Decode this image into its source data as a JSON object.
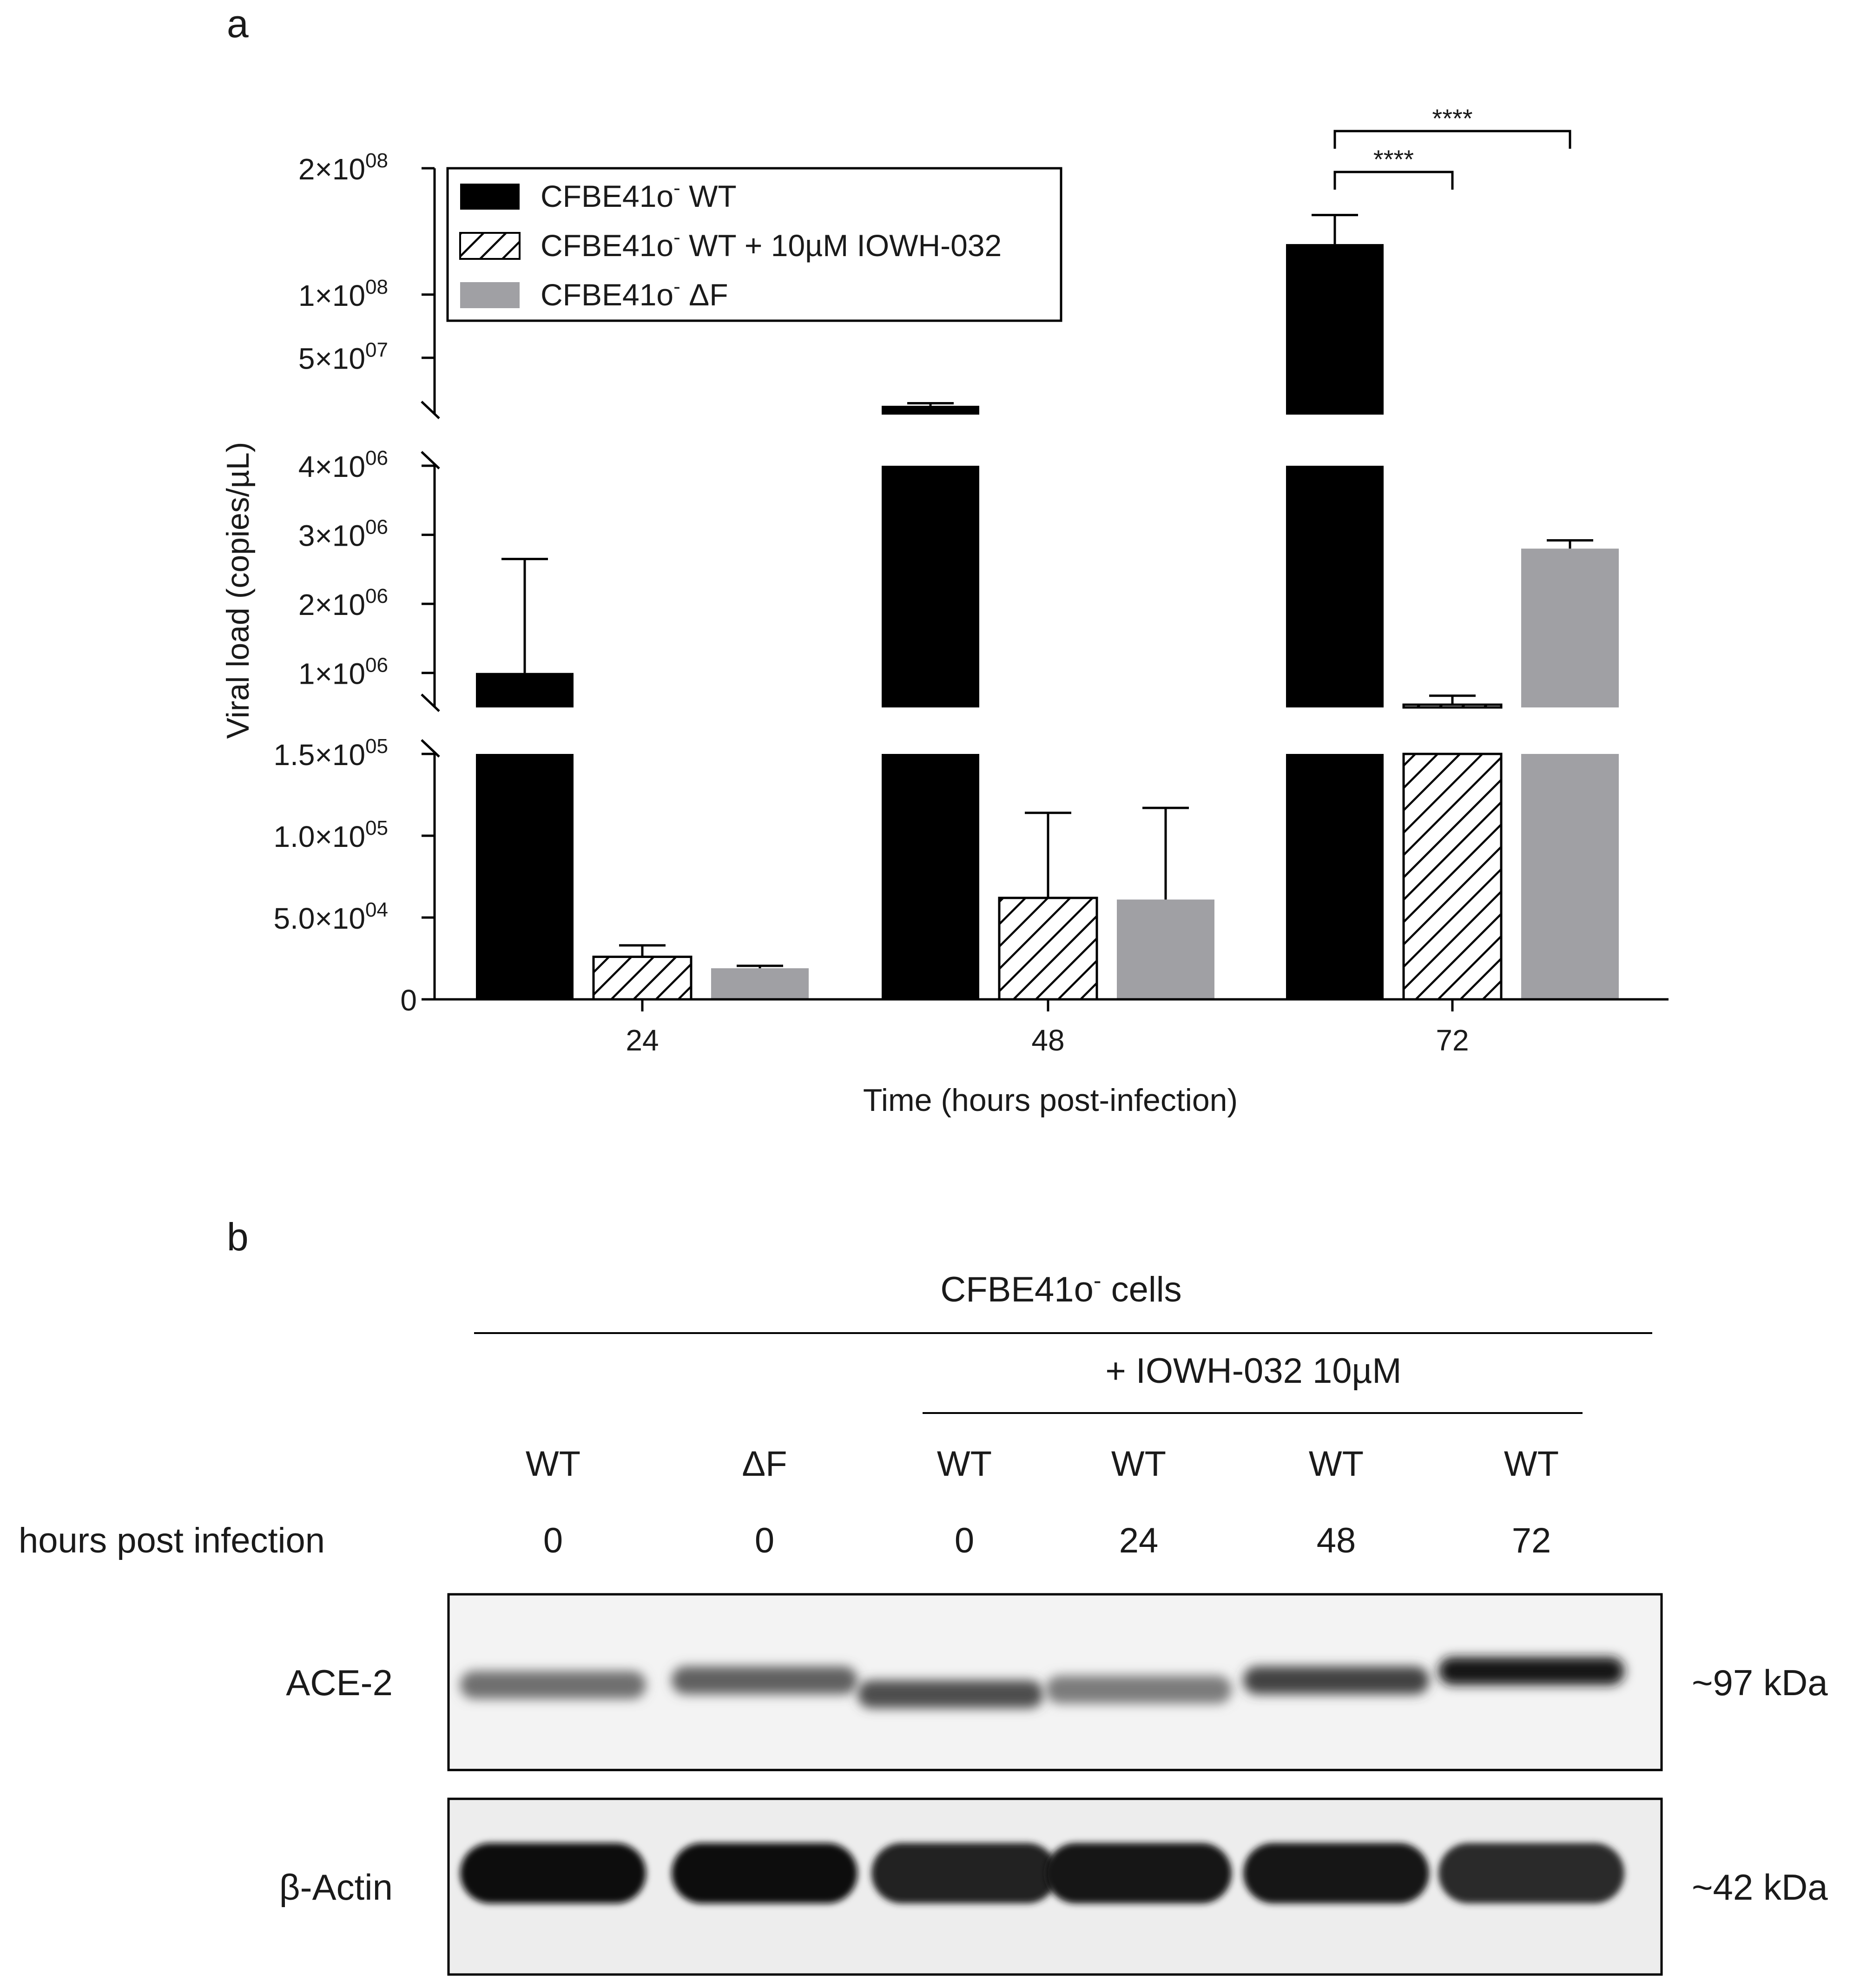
{
  "panel_a": {
    "label": "a"
  },
  "panel_b": {
    "label": "b"
  },
  "chart_data": {
    "type": "bar",
    "xlabel": "Time (hours post-infection)",
    "ylabel": "Viral load (copies/µL)",
    "categories": [
      "24",
      "48",
      "72"
    ],
    "y_scale": "broken",
    "y_segments": [
      {
        "range": [
          0,
          150000
        ],
        "ticks": [
          {
            "value": 0,
            "mant": "0",
            "exp": ""
          },
          {
            "value": 50000,
            "mant": "5.0×10",
            "exp": "04"
          },
          {
            "value": 100000,
            "mant": "1.0×10",
            "exp": "05"
          },
          {
            "value": 150000,
            "mant": "1.5×10",
            "exp": "05"
          }
        ]
      },
      {
        "range": [
          500000,
          4000000
        ],
        "ticks": [
          {
            "value": 1000000,
            "mant": "1×10",
            "exp": "06"
          },
          {
            "value": 2000000,
            "mant": "2×10",
            "exp": "06"
          },
          {
            "value": 3000000,
            "mant": "3×10",
            "exp": "06"
          },
          {
            "value": 4000000,
            "mant": "4×10",
            "exp": "06"
          }
        ]
      },
      {
        "range": [
          5000000,
          200000000
        ],
        "ticks": [
          {
            "value": 50000000,
            "mant": "5×10",
            "exp": "07"
          },
          {
            "value": 100000000,
            "mant": "1×10",
            "exp": "08"
          },
          {
            "value": 200000000,
            "mant": "2×10",
            "exp": "08"
          }
        ]
      }
    ],
    "series": [
      {
        "name": "CFBE41o⁻ WT",
        "legend_base": "CFBE41o",
        "legend_sup": "-",
        "legend_rest": " WT",
        "pattern": "solid",
        "color": "#000000",
        "values": [
          1000000,
          12000000,
          140000000
        ],
        "errors": [
          1650000,
          2000000,
          23000000
        ]
      },
      {
        "name": "CFBE41o⁻ WT + 10µM IOWH-032",
        "legend_base": "CFBE41o",
        "legend_sup": "-",
        "legend_rest": " WT + 10µM IOWH-032",
        "pattern": "hatch",
        "color": "#ffffff",
        "values": [
          26000,
          62000,
          540000
        ],
        "errors": [
          7000,
          52000,
          130000
        ]
      },
      {
        "name": "CFBE41o⁻ ΔF",
        "legend_base": "CFBE41o",
        "legend_sup": "-",
        "legend_rest": " ΔF",
        "pattern": "solid",
        "color": "#a0a0a4",
        "values": [
          19000,
          61000,
          2800000
        ],
        "errors": [
          1500,
          56000,
          120000
        ]
      }
    ],
    "significance": [
      {
        "from": "CFBE41o⁻ WT",
        "to": "CFBE41o⁻ WT + 10µM IOWH-032",
        "category": "72",
        "label": "****"
      },
      {
        "from": "CFBE41o⁻ WT",
        "to": "CFBE41o⁻ ΔF",
        "category": "72",
        "label": "****"
      }
    ],
    "legend_position": "top-left",
    "grid": false
  },
  "blot": {
    "group_label_base": "CFBE41o",
    "group_label_sup": "-",
    "group_label_rest": " cells",
    "treatment_label": "+ IOWH-032 10µM",
    "row_label": "hours post infection",
    "lanes": [
      {
        "genotype": "WT",
        "hours": "0"
      },
      {
        "genotype": "ΔF",
        "hours": "0"
      },
      {
        "genotype": "WT",
        "hours": "0"
      },
      {
        "genotype": "WT",
        "hours": "24"
      },
      {
        "genotype": "WT",
        "hours": "48"
      },
      {
        "genotype": "WT",
        "hours": "72"
      }
    ],
    "bands": [
      {
        "name": "ACE-2",
        "size": "~97 kDa",
        "intensities": [
          0.55,
          0.62,
          0.7,
          0.5,
          0.75,
          0.95
        ]
      },
      {
        "name": "β-Actin",
        "size": "~42 kDa",
        "intensities": [
          1.0,
          0.98,
          0.9,
          0.95,
          0.95,
          0.85
        ]
      }
    ]
  }
}
